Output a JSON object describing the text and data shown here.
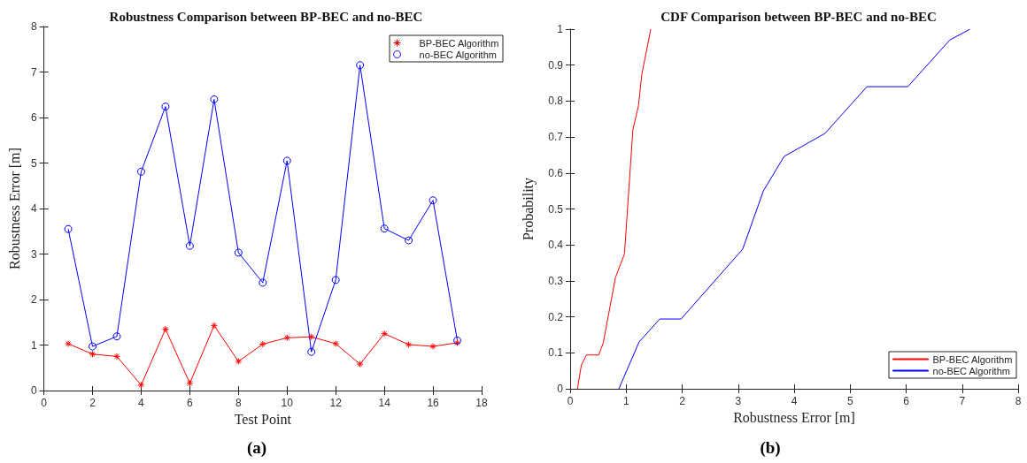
{
  "chart_data": [
    {
      "type": "line",
      "title": "Robustness Comparison between BP-BEC and no-BEC",
      "xlabel": "Test Point",
      "ylabel": "Robustness Error [m]",
      "x": [
        1,
        2,
        3,
        4,
        5,
        6,
        7,
        8,
        9,
        10,
        11,
        12,
        13,
        14,
        15,
        16,
        17
      ],
      "series": [
        {
          "name": "BP-BEC Algorithm",
          "color": "#ff0000",
          "marker": "cross",
          "values": [
            1.03,
            0.8,
            0.75,
            0.12,
            1.35,
            0.16,
            1.43,
            0.64,
            1.02,
            1.16,
            1.18,
            1.03,
            0.58,
            1.25,
            1.01,
            0.97,
            1.05
          ]
        },
        {
          "name": "no-BEC Algorithm",
          "color": "#0000ff",
          "marker": "circle",
          "values": [
            3.55,
            0.97,
            1.19,
            4.81,
            6.24,
            3.18,
            6.4,
            3.03,
            2.37,
            5.05,
            0.85,
            2.43,
            7.15,
            3.56,
            3.3,
            4.18,
            1.1
          ]
        }
      ],
      "xlim": [
        0,
        18
      ],
      "xticks": [
        0,
        2,
        4,
        6,
        8,
        10,
        12,
        14,
        16,
        18
      ],
      "ylim": [
        0,
        8
      ],
      "yticks": [
        0,
        1,
        2,
        3,
        4,
        5,
        6,
        7,
        8
      ],
      "grid": false,
      "legend": "top right",
      "annotations": [
        "(a)"
      ]
    },
    {
      "type": "line",
      "title": "CDF Comparison between BP-BEC and no-BEC",
      "xlabel": "Robustness Error [m]",
      "ylabel": "Probability",
      "series": [
        {
          "name": "BP-BEC Algorithm",
          "color": "#ff0000",
          "x": [
            0.13,
            0.2,
            0.29,
            0.51,
            0.59,
            0.81,
            0.97,
            1.12,
            1.22,
            1.28,
            1.44
          ],
          "values": [
            0,
            0.066,
            0.094,
            0.094,
            0.127,
            0.31,
            0.375,
            0.72,
            0.787,
            0.875,
            1
          ]
        },
        {
          "name": "no-BEC Algorithm",
          "color": "#0000ff",
          "x": [
            0.87,
            1.23,
            1.6,
            1.98,
            3.08,
            3.45,
            3.82,
            4.55,
            5.3,
            6.03,
            6.78,
            7.14
          ],
          "values": [
            0,
            0.13,
            0.194,
            0.194,
            0.388,
            0.55,
            0.646,
            0.71,
            0.84,
            0.84,
            0.97,
            1
          ]
        }
      ],
      "xlim": [
        0,
        8
      ],
      "xticks": [
        0,
        1,
        2,
        3,
        4,
        5,
        6,
        7,
        8
      ],
      "ylim": [
        0,
        1
      ],
      "yticks": [
        0,
        0.1,
        0.2,
        0.3,
        0.4,
        0.5,
        0.6,
        0.7,
        0.8,
        0.9,
        1
      ],
      "grid": false,
      "marker": "none",
      "legend": "bottom right",
      "annotations": [
        "(b)"
      ]
    }
  ]
}
